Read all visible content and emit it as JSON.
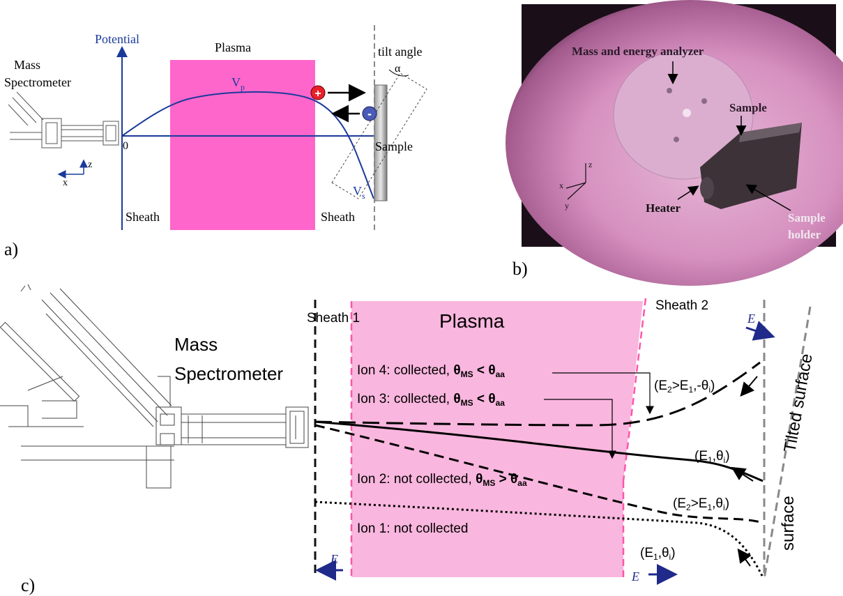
{
  "panel_a": {
    "label": "a)",
    "potential_label": "Potential",
    "plasma_label": "Plasma",
    "mass_spec_label": [
      "Mass",
      "Spectrometer"
    ],
    "tilt_label": "tilt angle",
    "alpha": "α",
    "vp": "V",
    "vp_sub": "p",
    "vs": "V",
    "vs_sub": "s",
    "zero": "0",
    "sample": "Sample",
    "sheath_left": "Sheath",
    "sheath_right": "Sheath",
    "axis_z": "z",
    "axis_x": "x",
    "plus": "+",
    "minus": "-"
  },
  "panel_b": {
    "label": "b)",
    "analyzer": "Mass and energy analyzer",
    "sample": "Sample",
    "heater": "Heater",
    "holder": [
      "Sample",
      "holder"
    ],
    "axis_x": "x",
    "axis_y": "y",
    "axis_z": "z"
  },
  "panel_c": {
    "label": "c)",
    "sheath1": "Sheath 1",
    "sheath2": "Sheath 2",
    "plasma": "Plasma",
    "mass_spec": [
      "Mass",
      "Spectrometer"
    ],
    "tilted_surface": "Tilted surface",
    "surface": "surface",
    "e_vec": "E",
    "ion4": {
      "text": "Ion 4: collected, ",
      "theta_ms": "θ",
      "ms": "MS",
      "op": " < ",
      "theta_aa": "θ",
      "aa": "aa"
    },
    "ion3": {
      "text": "Ion 3: collected, ",
      "theta_ms": "θ",
      "ms": "MS",
      "op": " < ",
      "theta_aa": "θ",
      "aa": "aa"
    },
    "ion2": {
      "text": "Ion 2: not collected, ",
      "theta_ms": "θ",
      "ms": "MS",
      "op": " > ",
      "theta_aa": "θ",
      "aa": "aa"
    },
    "ion1": "Ion 1: not collected",
    "lbl_e2_neg": {
      "a": "(E",
      "b": "2",
      "c": ">E",
      "d": "1",
      "e": ",-θ",
      "f": "i",
      "g": ")"
    },
    "lbl_e1": {
      "a": "(E",
      "b": "1",
      "c": ",θ",
      "d": "i",
      "e": ")"
    },
    "lbl_e2": {
      "a": "(E",
      "b": "2",
      "c": ">E",
      "d": "1",
      "e": ",θ",
      "f": "i",
      "g": ")"
    },
    "lbl_e1_b": {
      "a": "(E",
      "b": "1",
      "c": ",θ",
      "d": "i",
      "e": ")"
    }
  },
  "colors": {
    "plasma_a": "#ff66cc",
    "plasma_c": "#f9b6de",
    "potential_blue": "#1a3a9a",
    "e_arrow": "#1f2a8a",
    "pink_dash": "#ff55aa"
  }
}
